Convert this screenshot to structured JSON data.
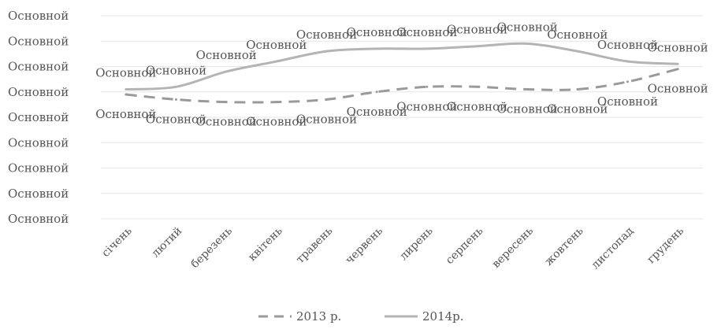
{
  "chart_data": {
    "type": "line",
    "categories": [
      "січень",
      "лютий",
      "березень",
      "квітень",
      "травень",
      "червень",
      "лирень",
      "серпень",
      "вересень",
      "жовтень",
      "листопад",
      "грудень"
    ],
    "y_tick_labels": [
      "Основной",
      "Основной",
      "Основной",
      "Основной",
      "Основной",
      "Основной",
      "Основной",
      "Основной",
      "Основной"
    ],
    "ylim": [
      0,
      8
    ],
    "grid": true,
    "legend_position": "bottom",
    "series": [
      {
        "name": "2013 р.",
        "style": "dashed",
        "color": "#9a9a9a",
        "values": [
          4.9,
          4.7,
          4.6,
          4.6,
          4.7,
          5.0,
          5.2,
          5.2,
          5.1,
          5.1,
          5.4,
          5.9
        ],
        "labels": [
          "Основной",
          "Основной",
          "Основной",
          "Основной",
          "Основной",
          "Основной",
          "Основной",
          "Основной",
          "Основной",
          "Основной",
          "Основной",
          "Основной"
        ]
      },
      {
        "name": "2014р.",
        "style": "solid",
        "color": "#b4b4b4",
        "values": [
          5.1,
          5.2,
          5.8,
          6.2,
          6.6,
          6.7,
          6.7,
          6.8,
          6.9,
          6.6,
          6.2,
          6.1
        ],
        "labels": [
          "Основной",
          "Основной",
          "Основной",
          "Основной",
          "Основной",
          "Основной",
          "Основной",
          "Основной",
          "Основной",
          "Основной",
          "Основной",
          "Основной"
        ]
      }
    ]
  }
}
